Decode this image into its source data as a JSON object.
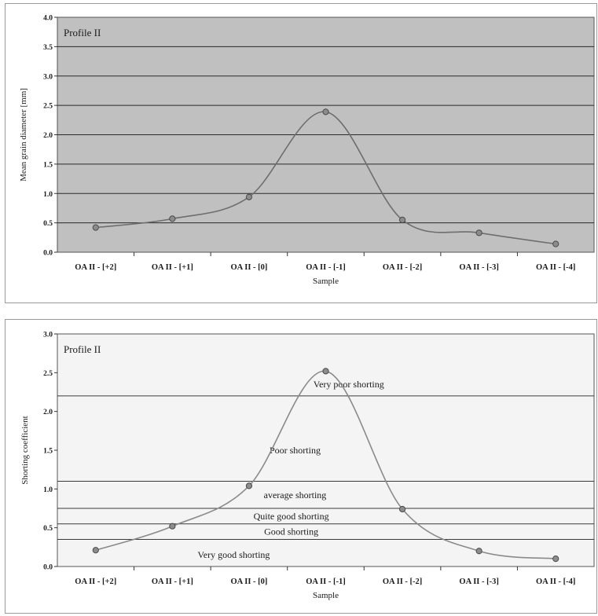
{
  "chart_data": [
    {
      "type": "line",
      "box_label": "Profile II",
      "ylabel": "Mean grain diameter [mm]",
      "xlabel": "Sample",
      "categories": [
        "OA II - [+2]",
        "OA II - [+1]",
        "OA II - [0]",
        "OA II - [-1]",
        "OA II - [-2]",
        "OA II - [-3]",
        "OA II - [-4]"
      ],
      "values": [
        0.42,
        0.57,
        0.94,
        2.39,
        0.55,
        0.33,
        0.14
      ],
      "ylim": [
        0,
        4.0
      ],
      "yticks": [
        "0.0",
        "0.5",
        "1.0",
        "1.5",
        "2.0",
        "2.5",
        "3.0",
        "3.5",
        "4.0"
      ],
      "plot_background": "#c0c0c0",
      "line_color": "#6e6e6e",
      "grid": true
    },
    {
      "type": "line",
      "box_label": "Profile II",
      "ylabel": "Shorting coefficient",
      "xlabel": "Sample",
      "categories": [
        "OA II - [+2]",
        "OA II - [+1]",
        "OA II - [0]",
        "OA II - [-1]",
        "OA II - [-2]",
        "OA II - [-3]",
        "OA II - [-4]"
      ],
      "values": [
        0.21,
        0.52,
        1.04,
        2.52,
        0.74,
        0.2,
        0.1
      ],
      "ylim": [
        0,
        3.0
      ],
      "yticks": [
        "0.0",
        "0.5",
        "1.0",
        "1.5",
        "2.0",
        "2.5",
        "3.0"
      ],
      "plot_background": "#f4f4f4",
      "line_color": "#8a8a8a",
      "thresholds": [
        0.35,
        0.55,
        0.75,
        1.1,
        2.2
      ],
      "zones": [
        {
          "label": "Very poor shorting",
          "y": 2.35,
          "category_pos": 3.8
        },
        {
          "label": "Poor shorting",
          "y": 1.5,
          "category_pos": 3.1
        },
        {
          "label": "average shorting",
          "y": 0.92,
          "category_pos": 3.1
        },
        {
          "label": "Quite good shorting",
          "y": 0.65,
          "category_pos": 3.05
        },
        {
          "label": "Good shorting",
          "y": 0.45,
          "category_pos": 3.05
        },
        {
          "label": "Very good shorting",
          "y": 0.15,
          "category_pos": 2.3
        }
      ],
      "grid": false
    }
  ]
}
